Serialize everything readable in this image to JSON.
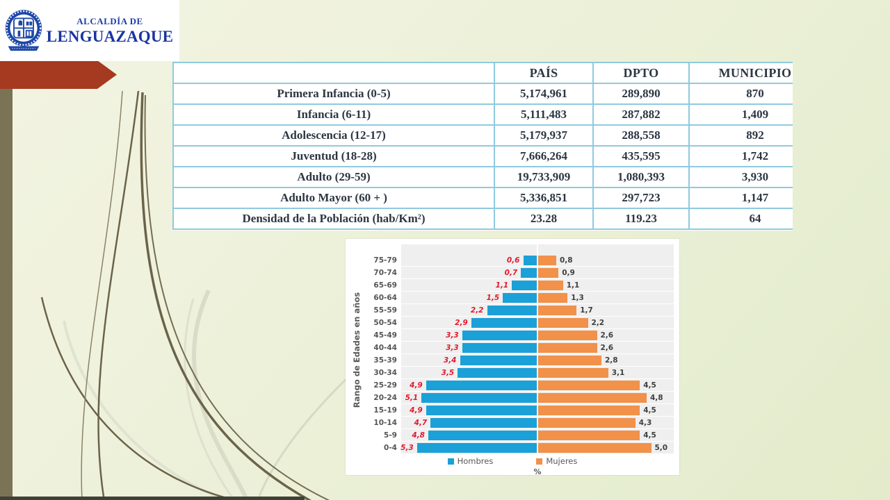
{
  "logo": {
    "line1": "ALCALDÍA DE",
    "line2": "LENGUAZAQUE",
    "seal_name": "municipal-seal",
    "brand_color": "#1d3da6"
  },
  "table": {
    "headers": [
      "",
      "PAÍS",
      "DPTO",
      "MUNICIPIO"
    ],
    "rows": [
      {
        "label": "Primera Infancia (0-5)",
        "pais": "5,174,961",
        "dpto": "289,890",
        "municipio": "870"
      },
      {
        "label": "Infancia (6-11)",
        "pais": "5,111,483",
        "dpto": "287,882",
        "municipio": "1,409"
      },
      {
        "label": "Adolescencia (12-17)",
        "pais": "5,179,937",
        "dpto": "288,558",
        "municipio": "892"
      },
      {
        "label": "Juventud (18-28)",
        "pais": "7,666,264",
        "dpto": "435,595",
        "municipio": "1,742"
      },
      {
        "label": "Adulto (29-59)",
        "pais": "19,733,909",
        "dpto": "1,080,393",
        "municipio": "3,930"
      },
      {
        "label": "Adulto Mayor (60 + )",
        "pais": "5,336,851",
        "dpto": "297,723",
        "municipio": "1,147"
      },
      {
        "label": "Densidad de la Población (hab/Km²)",
        "pais": "23.28",
        "dpto": "119.23",
        "municipio": "64"
      }
    ],
    "border_color": "#8ecadf"
  },
  "chart_data": {
    "type": "bar",
    "subtype": "population-pyramid",
    "categories": [
      "75-79",
      "70-74",
      "65-69",
      "60-64",
      "55-59",
      "50-54",
      "45-49",
      "40-44",
      "35-39",
      "30-34",
      "25-29",
      "20-24",
      "15-19",
      "10-14",
      "5-9",
      "0-4"
    ],
    "series": [
      {
        "name": "Hombres",
        "color": "#1ba0d8",
        "values": [
          0.6,
          0.7,
          1.1,
          1.5,
          2.2,
          2.9,
          3.3,
          3.3,
          3.4,
          3.5,
          4.9,
          5.1,
          4.9,
          4.7,
          4.8,
          5.3
        ],
        "labels": [
          "0,6",
          "0,7",
          "1,1",
          "1,5",
          "2,2",
          "2,9",
          "3,3",
          "3,3",
          "3,4",
          "3,5",
          "4,9",
          "5,1",
          "4,9",
          "4,7",
          "4,8",
          "5,3"
        ],
        "label_color": "#e2192e"
      },
      {
        "name": "Mujeres",
        "color": "#f1914a",
        "values": [
          0.8,
          0.9,
          1.1,
          1.3,
          1.7,
          2.2,
          2.6,
          2.6,
          2.8,
          3.1,
          4.5,
          4.8,
          4.5,
          4.3,
          4.5,
          5.0
        ],
        "labels": [
          "0,8",
          "0,9",
          "1,1",
          "1,3",
          "1,7",
          "2,2",
          "2,6",
          "2,6",
          "2,8",
          "3,1",
          "4,5",
          "4,8",
          "4,5",
          "4,3",
          "4,5",
          "5,0"
        ],
        "label_color": "#3f3f3f"
      }
    ],
    "ylabel": "Rango de Edades en años",
    "xlabel": "%",
    "xlim": [
      -6,
      6
    ],
    "grid": "white row separators on light-gray plot",
    "legend_position": "bottom"
  },
  "decor": {
    "arrow_color": "#a53a20",
    "strip_color": "#7b7355",
    "background_color": "#edf1d8"
  }
}
